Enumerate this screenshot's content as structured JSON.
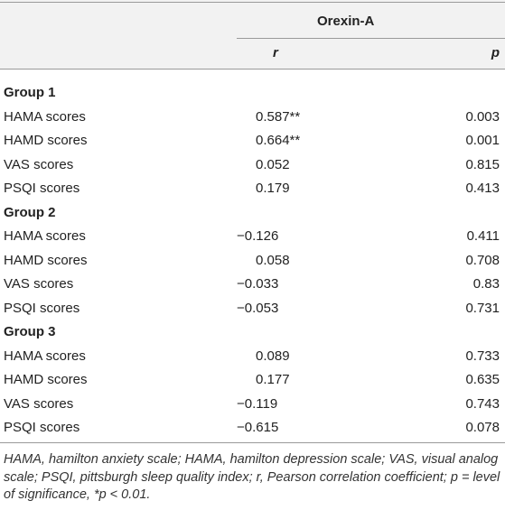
{
  "header": {
    "title": "Orexin-A",
    "columns": [
      "r",
      "p"
    ]
  },
  "groups": [
    {
      "name": "Group 1",
      "rows": [
        [
          "HAMA scores",
          "0.587**",
          "0.003"
        ],
        [
          "HAMD scores",
          "0.664**",
          "0.001"
        ],
        [
          "VAS scores",
          "0.052",
          "0.815"
        ],
        [
          "PSQI scores",
          "0.179",
          "0.413"
        ]
      ]
    },
    {
      "name": "Group 2",
      "rows": [
        [
          "HAMA scores",
          "−0.126",
          "0.411"
        ],
        [
          "HAMD scores",
          "0.058",
          "0.708"
        ],
        [
          "VAS scores",
          "−0.033",
          "0.83"
        ],
        [
          "PSQI scores",
          "−0.053",
          "0.731"
        ]
      ]
    },
    {
      "name": "Group 3",
      "rows": [
        [
          "HAMA scores",
          "0.089",
          "0.733"
        ],
        [
          "HAMD scores",
          "0.177",
          "0.635"
        ],
        [
          "VAS scores",
          "−0.119",
          "0.743"
        ],
        [
          "PSQI scores",
          "−0.615",
          "0.078"
        ]
      ]
    }
  ],
  "footnote": "HAMA, hamilton anxiety scale; HAMA, hamilton depression scale; VAS, visual analog scale; PSQI, pittsburgh sleep quality index; r, Pearson correlation coefficient; p = level of significance, *p < 0.01."
}
